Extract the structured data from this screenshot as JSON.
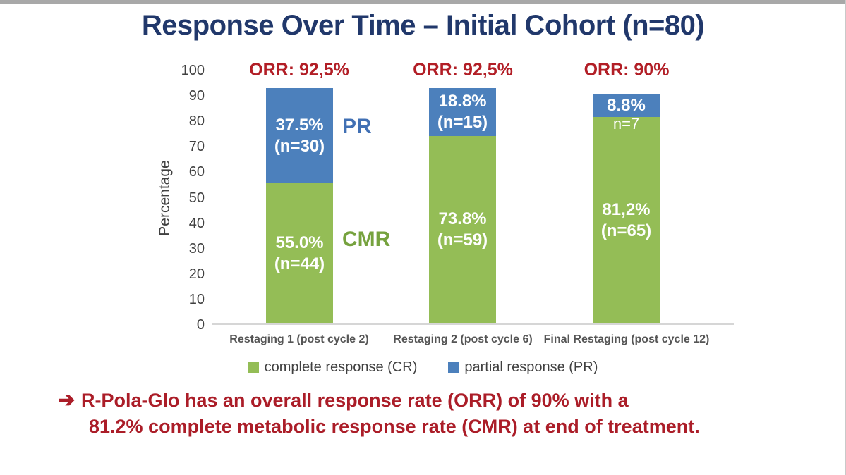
{
  "title": "Response Over Time – Initial Cohort (n=80)",
  "chart_data": {
    "type": "bar",
    "stacked": true,
    "title": "Response Over Time – Initial Cohort (n=80)",
    "ylabel": "Percentage",
    "ylim": [
      0,
      100
    ],
    "grid": false,
    "legend_position": "bottom",
    "ytick_labels": [
      "100",
      "90",
      "80",
      "70",
      "60",
      "50",
      "40",
      "30",
      "20",
      "10",
      "0"
    ],
    "categories": [
      "Restaging 1 (post cycle 2)",
      "Restaging 2 (post cycle 6)",
      "Final Restaging (post cycle 12)"
    ],
    "series": [
      {
        "name": "complete response (CR)",
        "color": "#94bd56",
        "values": [
          55.0,
          73.8,
          81.2
        ]
      },
      {
        "name": "partial response (PR)",
        "color": "#4c80bc",
        "values": [
          37.5,
          18.8,
          8.8
        ]
      }
    ],
    "orr_labels": [
      "ORR: 92,5%",
      "ORR: 92,5%",
      "ORR: 90%"
    ],
    "annotations": {
      "pr": "PR",
      "cmr": "CMR"
    }
  },
  "bars": [
    {
      "pr_line1": "37.5%",
      "pr_line2": "(n=30)",
      "cr_line1": "55.0%",
      "cr_line2": "(n=44)"
    },
    {
      "pr_line1": "18.8%",
      "pr_line2": "(n=15)",
      "cr_line1": "73.8%",
      "cr_line2": "(n=59)"
    },
    {
      "pr_line1": "8.8%",
      "pr_line2": "n=7",
      "cr_line1": "81,2%",
      "cr_line2": "(n=65)"
    }
  ],
  "footer": {
    "arrow": "➔",
    "line1": "R-Pola-Glo has an overall response rate (ORR) of 90% with a",
    "line2": "81.2% complete metabolic response rate (CMR) at end of treatment."
  },
  "colors": {
    "title": "#21386b",
    "orr_red": "#b21e26",
    "footer_red": "#ab1d28",
    "bar_blue": "#4c80bc",
    "bar_green": "#94bd56",
    "pr_text": "#4170b4",
    "cmr_text": "#76a23e"
  }
}
